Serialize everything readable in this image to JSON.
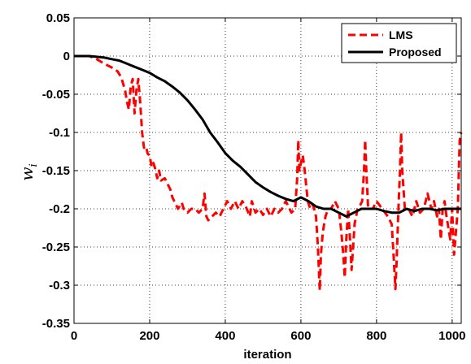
{
  "chart_data": {
    "type": "line",
    "title": "",
    "xlabel": "iteration",
    "ylabel": "w",
    "ylabel_subscript": "i",
    "xlim": [
      0,
      1024
    ],
    "ylim": [
      -0.35,
      0.05
    ],
    "xticks": [
      0,
      200,
      400,
      600,
      800,
      1000
    ],
    "yticks": [
      0.05,
      0,
      -0.05,
      -0.1,
      -0.15,
      -0.2,
      -0.25,
      -0.3,
      -0.35
    ],
    "ytick_labels": [
      "0.05",
      "0",
      "-0.05",
      "-0.1",
      "-0.15",
      "-0.2",
      "-0.25",
      "-0.3",
      "-0.35"
    ],
    "grid": true,
    "legend": "top-right",
    "series": [
      {
        "name": "LMS",
        "color": "#ff0000",
        "style": "dashed",
        "points": [
          [
            0,
            0
          ],
          [
            40,
            0
          ],
          [
            60,
            -0.004
          ],
          [
            80,
            -0.01
          ],
          [
            100,
            -0.015
          ],
          [
            115,
            -0.02
          ],
          [
            125,
            -0.028
          ],
          [
            135,
            -0.045
          ],
          [
            140,
            -0.06
          ],
          [
            145,
            -0.07
          ],
          [
            150,
            -0.04
          ],
          [
            155,
            -0.03
          ],
          [
            160,
            -0.075
          ],
          [
            165,
            -0.045
          ],
          [
            170,
            -0.03
          ],
          [
            175,
            -0.06
          ],
          [
            180,
            -0.1
          ],
          [
            185,
            -0.12
          ],
          [
            190,
            -0.118
          ],
          [
            195,
            -0.128
          ],
          [
            200,
            -0.13
          ],
          [
            205,
            -0.145
          ],
          [
            210,
            -0.14
          ],
          [
            215,
            -0.148
          ],
          [
            220,
            -0.16
          ],
          [
            225,
            -0.15
          ],
          [
            230,
            -0.163
          ],
          [
            240,
            -0.16
          ],
          [
            250,
            -0.17
          ],
          [
            255,
            -0.175
          ],
          [
            260,
            -0.185
          ],
          [
            265,
            -0.19
          ],
          [
            275,
            -0.2
          ],
          [
            285,
            -0.192
          ],
          [
            290,
            -0.2
          ],
          [
            300,
            -0.205
          ],
          [
            310,
            -0.2
          ],
          [
            320,
            -0.2
          ],
          [
            330,
            -0.205
          ],
          [
            340,
            -0.2
          ],
          [
            345,
            -0.18
          ],
          [
            350,
            -0.21
          ],
          [
            355,
            -0.215
          ],
          [
            365,
            -0.21
          ],
          [
            375,
            -0.205
          ],
          [
            385,
            -0.21
          ],
          [
            395,
            -0.2
          ],
          [
            405,
            -0.19
          ],
          [
            415,
            -0.2
          ],
          [
            425,
            -0.19
          ],
          [
            435,
            -0.2
          ],
          [
            445,
            -0.19
          ],
          [
            455,
            -0.198
          ],
          [
            465,
            -0.21
          ],
          [
            470,
            -0.19
          ],
          [
            480,
            -0.205
          ],
          [
            490,
            -0.2
          ],
          [
            500,
            -0.208
          ],
          [
            510,
            -0.2
          ],
          [
            520,
            -0.21
          ],
          [
            530,
            -0.2
          ],
          [
            540,
            -0.205
          ],
          [
            550,
            -0.2
          ],
          [
            560,
            -0.19
          ],
          [
            575,
            -0.205
          ],
          [
            585,
            -0.2
          ],
          [
            590,
            -0.16
          ],
          [
            593,
            -0.11
          ],
          [
            596,
            -0.15
          ],
          [
            600,
            -0.14
          ],
          [
            605,
            -0.13
          ],
          [
            610,
            -0.15
          ],
          [
            618,
            -0.19
          ],
          [
            625,
            -0.2
          ],
          [
            632,
            -0.195
          ],
          [
            640,
            -0.21
          ],
          [
            645,
            -0.25
          ],
          [
            648,
            -0.285
          ],
          [
            650,
            -0.307
          ],
          [
            653,
            -0.26
          ],
          [
            658,
            -0.23
          ],
          [
            665,
            -0.21
          ],
          [
            672,
            -0.2
          ],
          [
            680,
            -0.2
          ],
          [
            690,
            -0.19
          ],
          [
            700,
            -0.2
          ],
          [
            707,
            -0.23
          ],
          [
            712,
            -0.26
          ],
          [
            716,
            -0.29
          ],
          [
            720,
            -0.24
          ],
          [
            725,
            -0.2
          ],
          [
            730,
            -0.24
          ],
          [
            734,
            -0.28
          ],
          [
            738,
            -0.25
          ],
          [
            742,
            -0.22
          ],
          [
            750,
            -0.2
          ],
          [
            757,
            -0.195
          ],
          [
            762,
            -0.19
          ],
          [
            767,
            -0.15
          ],
          [
            770,
            -0.11
          ],
          [
            773,
            -0.15
          ],
          [
            778,
            -0.2
          ],
          [
            790,
            -0.2
          ],
          [
            800,
            -0.19
          ],
          [
            815,
            -0.2
          ],
          [
            830,
            -0.21
          ],
          [
            840,
            -0.22
          ],
          [
            845,
            -0.26
          ],
          [
            850,
            -0.305
          ],
          [
            853,
            -0.27
          ],
          [
            858,
            -0.2
          ],
          [
            862,
            -0.15
          ],
          [
            865,
            -0.1
          ],
          [
            868,
            -0.15
          ],
          [
            875,
            -0.2
          ],
          [
            885,
            -0.2
          ],
          [
            895,
            -0.21
          ],
          [
            905,
            -0.19
          ],
          [
            915,
            -0.205
          ],
          [
            925,
            -0.2
          ],
          [
            935,
            -0.18
          ],
          [
            945,
            -0.2
          ],
          [
            952,
            -0.19
          ],
          [
            960,
            -0.21
          ],
          [
            965,
            -0.2
          ],
          [
            970,
            -0.24
          ],
          [
            975,
            -0.2
          ],
          [
            980,
            -0.19
          ],
          [
            985,
            -0.21
          ],
          [
            990,
            -0.225
          ],
          [
            995,
            -0.24
          ],
          [
            1000,
            -0.2
          ],
          [
            1005,
            -0.26
          ],
          [
            1010,
            -0.23
          ],
          [
            1015,
            -0.2
          ],
          [
            1020,
            -0.11
          ],
          [
            1024,
            -0.1
          ]
        ]
      },
      {
        "name": "Proposed",
        "color": "#000000",
        "style": "solid",
        "points": [
          [
            0,
            0
          ],
          [
            20,
            0
          ],
          [
            40,
            0
          ],
          [
            60,
            -0.001
          ],
          [
            80,
            -0.002
          ],
          [
            100,
            -0.004
          ],
          [
            120,
            -0.006
          ],
          [
            140,
            -0.01
          ],
          [
            160,
            -0.014
          ],
          [
            180,
            -0.018
          ],
          [
            200,
            -0.022
          ],
          [
            220,
            -0.028
          ],
          [
            240,
            -0.033
          ],
          [
            260,
            -0.04
          ],
          [
            280,
            -0.048
          ],
          [
            300,
            -0.058
          ],
          [
            320,
            -0.07
          ],
          [
            340,
            -0.083
          ],
          [
            360,
            -0.1
          ],
          [
            380,
            -0.113
          ],
          [
            400,
            -0.127
          ],
          [
            420,
            -0.137
          ],
          [
            440,
            -0.145
          ],
          [
            460,
            -0.155
          ],
          [
            480,
            -0.165
          ],
          [
            500,
            -0.172
          ],
          [
            520,
            -0.178
          ],
          [
            540,
            -0.183
          ],
          [
            560,
            -0.187
          ],
          [
            580,
            -0.19
          ],
          [
            600,
            -0.185
          ],
          [
            620,
            -0.19
          ],
          [
            640,
            -0.197
          ],
          [
            660,
            -0.2
          ],
          [
            680,
            -0.2
          ],
          [
            700,
            -0.205
          ],
          [
            720,
            -0.21
          ],
          [
            740,
            -0.205
          ],
          [
            760,
            -0.2
          ],
          [
            780,
            -0.2
          ],
          [
            800,
            -0.2
          ],
          [
            820,
            -0.203
          ],
          [
            840,
            -0.205
          ],
          [
            860,
            -0.205
          ],
          [
            880,
            -0.2
          ],
          [
            900,
            -0.203
          ],
          [
            920,
            -0.2
          ],
          [
            940,
            -0.2
          ],
          [
            960,
            -0.202
          ],
          [
            980,
            -0.2
          ],
          [
            1000,
            -0.2
          ],
          [
            1024,
            -0.2
          ]
        ]
      }
    ]
  }
}
